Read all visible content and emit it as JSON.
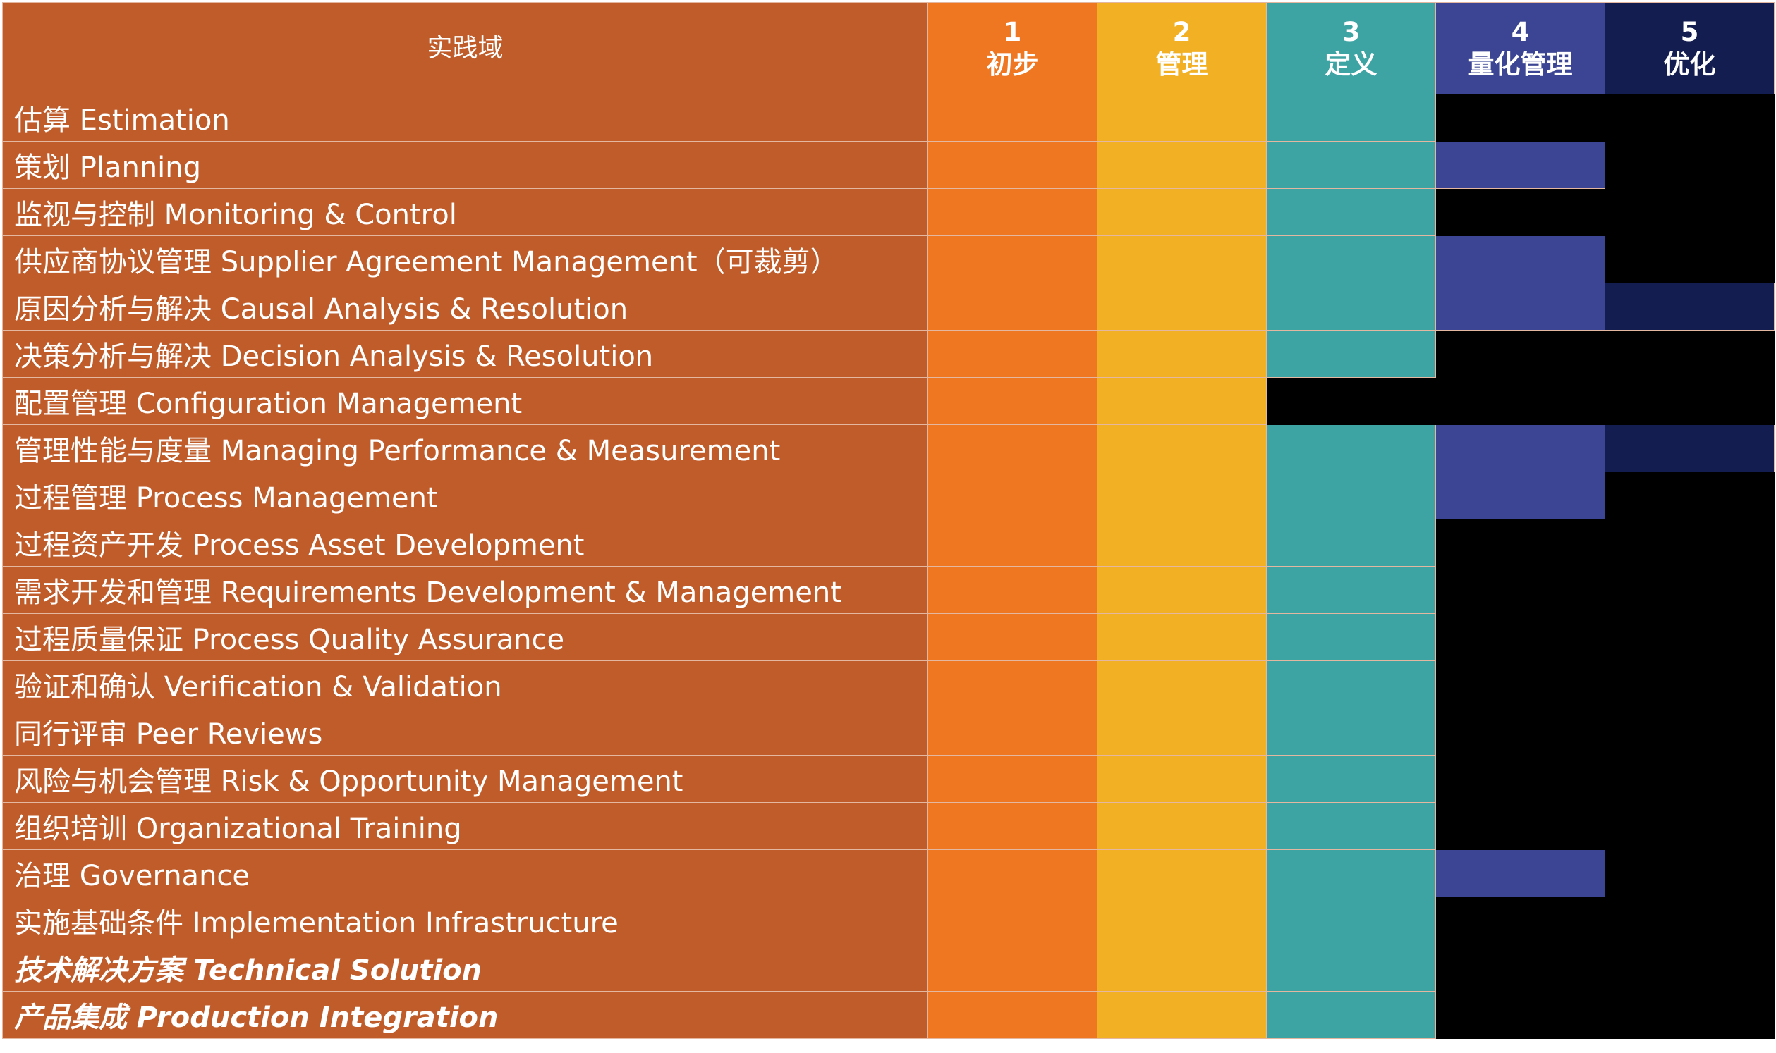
{
  "header": {
    "domain_label": "实践域",
    "levels": [
      {
        "number": "1",
        "name": "初步"
      },
      {
        "number": "2",
        "name": "管理"
      },
      {
        "number": "3",
        "name": "定义"
      },
      {
        "number": "4",
        "name": "量化管理"
      },
      {
        "number": "5",
        "name": "优化"
      }
    ]
  },
  "colors": {
    "domain_bg": "#c05c2a",
    "level_colors": [
      "#ef7722",
      "#f2b125",
      "#3ea3a3",
      "#3b4593",
      "#141d50"
    ],
    "empty": "#000000",
    "grid_line": "#e3b7a0",
    "text": "#ffffff"
  },
  "rows": [
    {
      "name": "估算 Estimation",
      "levels": [
        1,
        1,
        1,
        0,
        0
      ],
      "italic": false
    },
    {
      "name": "策划 Planning",
      "levels": [
        1,
        1,
        1,
        1,
        0
      ],
      "italic": false
    },
    {
      "name": "监视与控制 Monitoring & Control",
      "levels": [
        1,
        1,
        1,
        0,
        0
      ],
      "italic": false
    },
    {
      "name": "供应商协议管理 Supplier Agreement Management（可裁剪）",
      "levels": [
        1,
        1,
        1,
        1,
        0
      ],
      "italic": false
    },
    {
      "name": "原因分析与解决 Causal Analysis & Resolution",
      "levels": [
        1,
        1,
        1,
        1,
        1
      ],
      "italic": false
    },
    {
      "name": "决策分析与解决 Decision Analysis & Resolution",
      "levels": [
        1,
        1,
        1,
        0,
        0
      ],
      "italic": false
    },
    {
      "name": "配置管理 Configuration Management",
      "levels": [
        1,
        1,
        0,
        0,
        0
      ],
      "italic": false
    },
    {
      "name": "管理性能与度量 Managing Performance & Measurement",
      "levels": [
        1,
        1,
        1,
        1,
        1
      ],
      "italic": false
    },
    {
      "name": "过程管理 Process Management",
      "levels": [
        1,
        1,
        1,
        1,
        0
      ],
      "italic": false
    },
    {
      "name": "过程资产开发 Process Asset Development",
      "levels": [
        1,
        1,
        1,
        0,
        0
      ],
      "italic": false
    },
    {
      "name": "需求开发和管理 Requirements Development & Management",
      "levels": [
        1,
        1,
        1,
        0,
        0
      ],
      "italic": false
    },
    {
      "name": "过程质量保证 Process Quality Assurance",
      "levels": [
        1,
        1,
        1,
        0,
        0
      ],
      "italic": false
    },
    {
      "name": "验证和确认 Verification & Validation",
      "levels": [
        1,
        1,
        1,
        0,
        0
      ],
      "italic": false
    },
    {
      "name": "同行评审 Peer Reviews",
      "levels": [
        1,
        1,
        1,
        0,
        0
      ],
      "italic": false
    },
    {
      "name": "风险与机会管理 Risk & Opportunity Management",
      "levels": [
        1,
        1,
        1,
        0,
        0
      ],
      "italic": false
    },
    {
      "name": "组织培训 Organizational Training",
      "levels": [
        1,
        1,
        1,
        0,
        0
      ],
      "italic": false
    },
    {
      "name": "治理 Governance",
      "levels": [
        1,
        1,
        1,
        1,
        0
      ],
      "italic": false
    },
    {
      "name": "实施基础条件 Implementation Infrastructure",
      "levels": [
        1,
        1,
        1,
        0,
        0
      ],
      "italic": false
    },
    {
      "name": "技术解决方案 Technical Solution",
      "levels": [
        1,
        1,
        1,
        0,
        0
      ],
      "italic": true
    },
    {
      "name": "产品集成 Production Integration",
      "levels": [
        1,
        1,
        1,
        0,
        0
      ],
      "italic": true
    }
  ]
}
